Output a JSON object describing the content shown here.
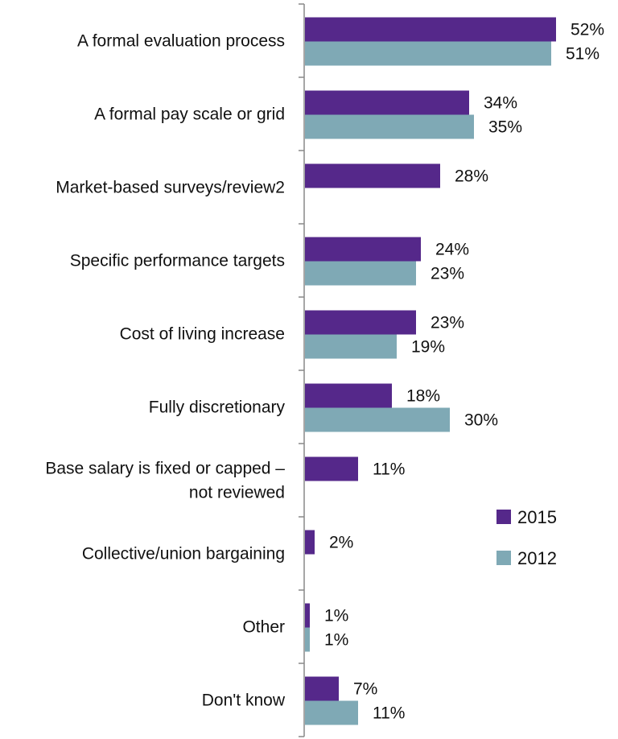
{
  "chart_data": {
    "type": "bar",
    "orientation": "horizontal",
    "categories": [
      [
        "A formal evaluation process"
      ],
      [
        "A formal pay scale or grid"
      ],
      [
        "Market-based surveys/review2"
      ],
      [
        "Specific performance targets"
      ],
      [
        "Cost of living increase"
      ],
      [
        "Fully discretionary"
      ],
      [
        "Base salary is fixed or capped –",
        "not reviewed"
      ],
      [
        "Collective/union bargaining"
      ],
      [
        "Other"
      ],
      [
        "Don't know"
      ]
    ],
    "series": [
      {
        "name": "2015",
        "color": "#55288a",
        "values": [
          52,
          34,
          28,
          24,
          23,
          18,
          11,
          2,
          1,
          7
        ]
      },
      {
        "name": "2012",
        "color": "#7fa9b5",
        "values": [
          51,
          35,
          null,
          23,
          19,
          30,
          null,
          null,
          1,
          11
        ]
      }
    ],
    "value_suffix": "%",
    "xlim": [
      0,
      60
    ],
    "legend_position": "right",
    "grid": false
  }
}
